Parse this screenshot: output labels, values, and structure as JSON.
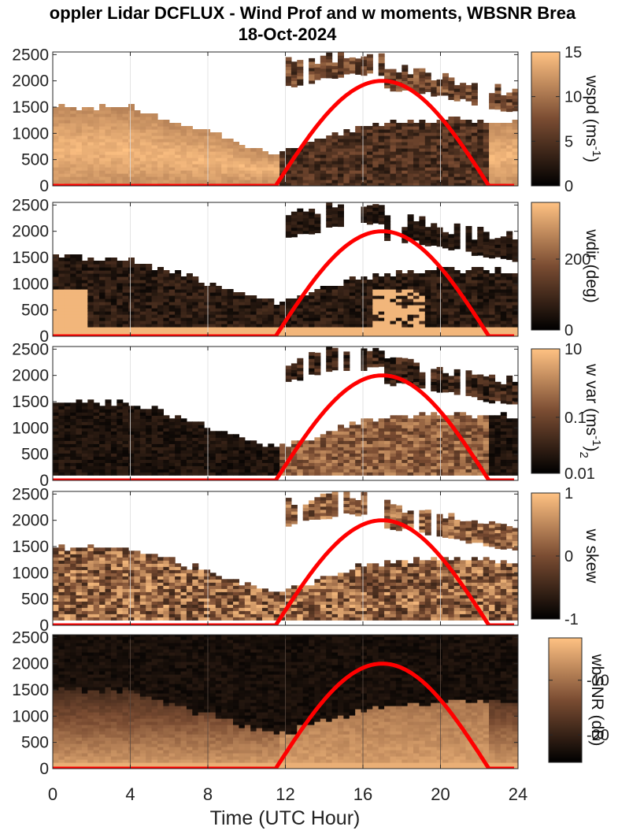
{
  "title_line1": "oppler Lidar DCFLUX - Wind Prof and w moments, WBSNR Brea",
  "title_line2": "18-Oct-2024",
  "xlabel": "Time (UTC Hour)",
  "colormap": {
    "low": "#000000",
    "mid": "#7a4c32",
    "high": "#ffc283"
  },
  "sun_curve_color": "#ff0000",
  "chart_data": [
    {
      "type": "heatmap",
      "panel": "wspd",
      "xlim": [
        0,
        24
      ],
      "ylim": [
        0,
        2550
      ],
      "x_ticks": [
        0,
        4,
        8,
        12,
        16,
        20,
        24
      ],
      "y_ticks": [
        "0",
        "500",
        "1000",
        "1500",
        "2000",
        "2500"
      ],
      "colorbar": {
        "label": "wspd (ms",
        "label_sup": "-1",
        "label_end": ")",
        "clim": [
          0,
          15
        ],
        "ticks": [
          "0",
          "5",
          "10",
          "15"
        ]
      },
      "upper_layer_height_range": [
        1800,
        2500
      ],
      "mixed_layer_top": {
        "hours": [
          0,
          4,
          8,
          11.5,
          16,
          20,
          24
        ],
        "height": [
          1480,
          1450,
          1000,
          600,
          1100,
          1250,
          1200
        ]
      },
      "sun_curve": {
        "start": 11.5,
        "peak_hour": 17,
        "peak": 2000,
        "end": 22.5
      }
    },
    {
      "type": "heatmap",
      "panel": "wdir",
      "xlim": [
        0,
        24
      ],
      "ylim": [
        0,
        2550
      ],
      "x_ticks": [
        0,
        4,
        8,
        12,
        16,
        20,
        24
      ],
      "y_ticks": [
        "0",
        "500",
        "1000",
        "1500",
        "2000",
        "2500"
      ],
      "colorbar": {
        "label": "wdir (deg)",
        "clim": [
          0,
          360
        ],
        "ticks": [
          "0",
          "200"
        ]
      },
      "mixed_layer_top": {
        "hours": [
          0,
          4,
          8,
          11.5,
          16,
          20,
          24
        ],
        "height": [
          1480,
          1450,
          1000,
          600,
          1100,
          1250,
          1200
        ]
      },
      "sun_curve": {
        "start": 11.5,
        "peak_hour": 17,
        "peak": 2000,
        "end": 22.5
      }
    },
    {
      "type": "heatmap",
      "panel": "w var",
      "xlim": [
        0,
        24
      ],
      "ylim": [
        0,
        2550
      ],
      "x_ticks": [
        0,
        4,
        8,
        12,
        16,
        20,
        24
      ],
      "y_ticks": [
        "0",
        "500",
        "1000",
        "1500",
        "2000",
        "2500"
      ],
      "colorbar": {
        "label": "w var (ms",
        "label_sup": "-1",
        "label_end": ")",
        "label_sub": "2",
        "clim": [
          0.01,
          10
        ],
        "ticks": [
          "0.01",
          "0.1",
          "10"
        ]
      },
      "mixed_layer_top": {
        "hours": [
          0,
          4,
          8,
          11.5,
          16,
          20,
          24
        ],
        "height": [
          1480,
          1450,
          1000,
          600,
          1100,
          1250,
          1200
        ]
      },
      "sun_curve": {
        "start": 11.5,
        "peak_hour": 17,
        "peak": 2000,
        "end": 22.5
      }
    },
    {
      "type": "heatmap",
      "panel": "w skew",
      "xlim": [
        0,
        24
      ],
      "ylim": [
        0,
        2550
      ],
      "x_ticks": [
        0,
        4,
        8,
        12,
        16,
        20,
        24
      ],
      "y_ticks": [
        "0",
        "500",
        "1000",
        "1500",
        "2000",
        "2500"
      ],
      "colorbar": {
        "label": "w skew",
        "clim": [
          -1,
          1
        ],
        "ticks": [
          "-1",
          "0",
          "1"
        ]
      },
      "mixed_layer_top": {
        "hours": [
          0,
          4,
          8,
          11.5,
          16,
          20,
          24
        ],
        "height": [
          1480,
          1450,
          1000,
          600,
          1100,
          1250,
          1200
        ]
      },
      "sun_curve": {
        "start": 11.5,
        "peak_hour": 17,
        "peak": 2000,
        "end": 22.5
      }
    },
    {
      "type": "heatmap",
      "panel": "wbSNR",
      "xlim": [
        0,
        24
      ],
      "ylim": [
        0,
        2550
      ],
      "x_ticks": [
        0,
        4,
        8,
        12,
        16,
        20,
        24
      ],
      "y_ticks": [
        "0",
        "500",
        "1000",
        "1500",
        "2000",
        "2500"
      ],
      "colorbar": {
        "label": "wbSNR (dB)",
        "ticks": [
          "-20",
          "-10"
        ]
      },
      "mixed_layer_top": {
        "hours": [
          0,
          4,
          8,
          11.5,
          16,
          20,
          24
        ],
        "height": [
          1480,
          1450,
          1000,
          600,
          1100,
          1250,
          1200
        ]
      },
      "sun_curve": {
        "start": 11.5,
        "peak_hour": 17,
        "peak": 2000,
        "end": 22.5
      }
    }
  ]
}
